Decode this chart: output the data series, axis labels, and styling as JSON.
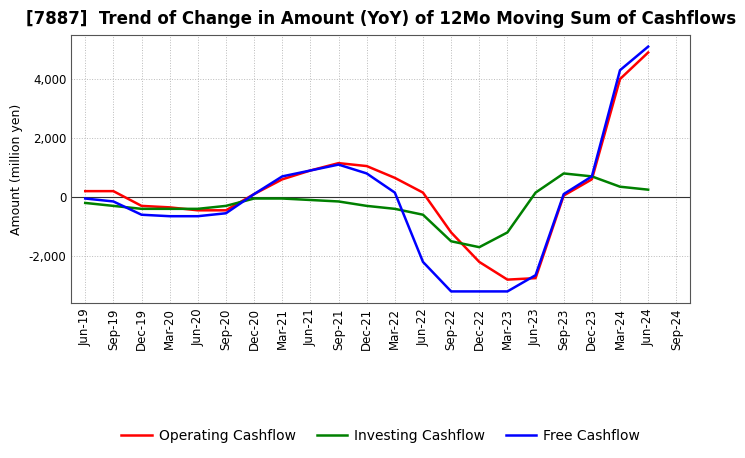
{
  "title": "[7887]  Trend of Change in Amount (YoY) of 12Mo Moving Sum of Cashflows",
  "ylabel": "Amount (million yen)",
  "x_labels": [
    "Jun-19",
    "Sep-19",
    "Dec-19",
    "Mar-20",
    "Jun-20",
    "Sep-20",
    "Dec-20",
    "Mar-21",
    "Jun-21",
    "Sep-21",
    "Dec-21",
    "Mar-22",
    "Jun-22",
    "Sep-22",
    "Dec-22",
    "Mar-23",
    "Jun-23",
    "Sep-23",
    "Dec-23",
    "Mar-24",
    "Jun-24",
    "Sep-24"
  ],
  "operating": [
    200,
    200,
    -300,
    -350,
    -450,
    -450,
    100,
    600,
    900,
    1150,
    1050,
    650,
    150,
    -1200,
    -2200,
    -2800,
    -2750,
    50,
    600,
    4000,
    4900,
    null
  ],
  "investing": [
    -200,
    -300,
    -400,
    -400,
    -400,
    -300,
    -50,
    -50,
    -100,
    -150,
    -300,
    -400,
    -600,
    -1500,
    -1700,
    -1200,
    150,
    800,
    700,
    350,
    250,
    null
  ],
  "free": [
    -50,
    -150,
    -600,
    -650,
    -650,
    -550,
    100,
    700,
    900,
    1100,
    800,
    150,
    -2200,
    -3200,
    -3200,
    -3200,
    -2650,
    100,
    700,
    4300,
    5100,
    null
  ],
  "operating_color": "#ff0000",
  "investing_color": "#008000",
  "free_color": "#0000ff",
  "ylim": [
    -3600,
    5500
  ],
  "yticks": [
    -2000,
    0,
    2000,
    4000
  ],
  "background_color": "#ffffff",
  "grid_color": "#bbbbbb",
  "title_fontsize": 12,
  "axis_label_fontsize": 9,
  "tick_fontsize": 8.5,
  "legend_fontsize": 10,
  "linewidth": 1.8
}
